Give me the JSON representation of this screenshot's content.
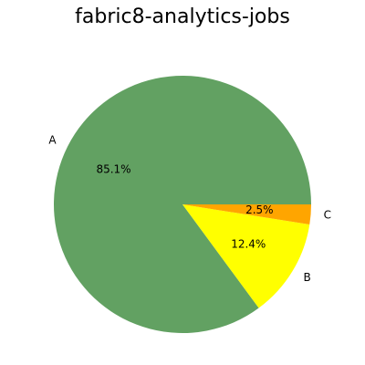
{
  "chart_data": {
    "type": "pie",
    "title": "fabric8-analytics-jobs",
    "slices": [
      {
        "label": "A",
        "value": 85.1,
        "pct_label": "85.1%",
        "color": "#62a162"
      },
      {
        "label": "B",
        "value": 12.4,
        "pct_label": "12.4%",
        "color": "#ffff00"
      },
      {
        "label": "C",
        "value": 2.5,
        "pct_label": "2.5%",
        "color": "#ffa500"
      }
    ],
    "start_angle_deg": 0,
    "direction": "counterclockwise",
    "legend": "none"
  }
}
